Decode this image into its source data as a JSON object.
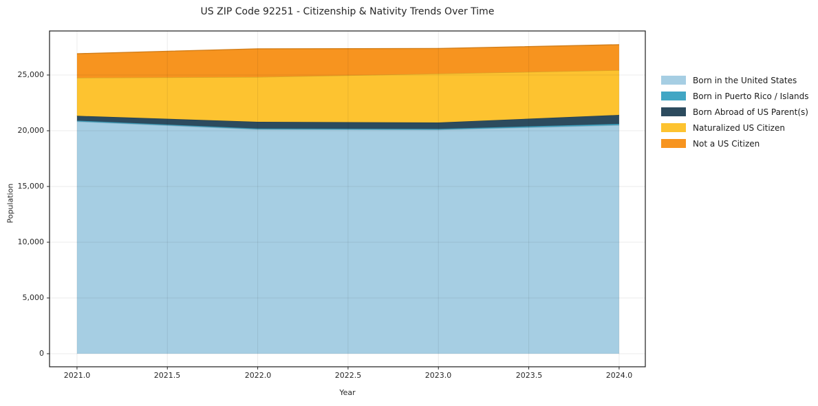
{
  "figure": {
    "title": "US ZIP Code 92251 - Citizenship & Nativity Trends Over Time"
  },
  "chart_data": {
    "type": "area",
    "stacked": true,
    "title": "US ZIP Code 92251 - Citizenship & Nativity Trends Over Time",
    "xlabel": "Year",
    "ylabel": "Population",
    "x": [
      2021,
      2022,
      2023,
      2024
    ],
    "series": [
      {
        "name": "Born in the United States",
        "color": "#A6CEE3",
        "values": [
          20830,
          20120,
          20090,
          20500
        ]
      },
      {
        "name": "Born in Puerto Rico / Islands",
        "color": "#41A6C4",
        "values": [
          80,
          80,
          80,
          120
        ]
      },
      {
        "name": "Born Abroad of US Parent(s)",
        "color": "#2C4B5E",
        "values": [
          430,
          600,
          570,
          800
        ]
      },
      {
        "name": "Naturalized US Citizen",
        "color": "#FDC330",
        "values": [
          3410,
          4020,
          4380,
          4010
        ]
      },
      {
        "name": "Not a US Citizen",
        "color": "#F7941F",
        "values": [
          2160,
          2530,
          2260,
          2290
        ]
      }
    ],
    "stacked_totals": [
      26910,
      27350,
      27380,
      27720
    ],
    "xtick_values": [
      2021,
      2021.5,
      2022,
      2022.5,
      2023,
      2023.5,
      2024
    ],
    "xtick_labels": [
      "2021.0",
      "2021.5",
      "2022.0",
      "2022.5",
      "2023.0",
      "2023.5",
      "2024.0"
    ],
    "ytick_values": [
      0,
      5000,
      10000,
      15000,
      20000,
      25000
    ],
    "ytick_labels": [
      "0",
      "5,000",
      "10,000",
      "15,000",
      "20,000",
      "25,000"
    ],
    "xlim": [
      2020.848,
      2024.145
    ],
    "ylim": [
      -1173,
      28950
    ],
    "grid": true,
    "legend_position": "outside right"
  }
}
